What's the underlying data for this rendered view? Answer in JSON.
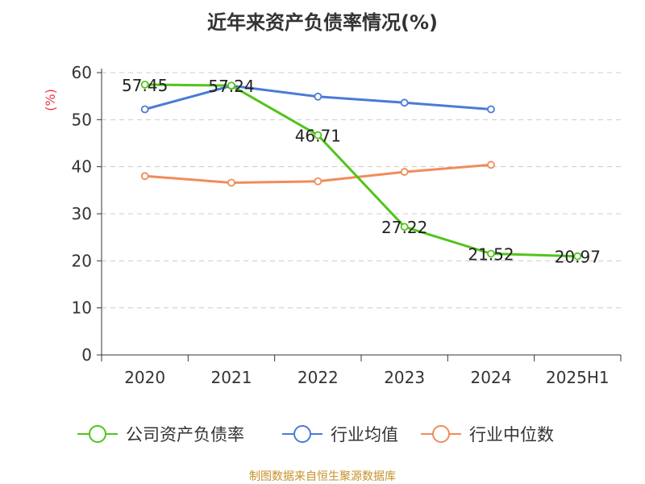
{
  "chart_data": {
    "type": "line",
    "title": "近年来资产负债率情况(%)",
    "ylabel": "(%)",
    "xlabel": "",
    "categories": [
      "2020",
      "2021",
      "2022",
      "2023",
      "2024",
      "2025H1"
    ],
    "ylim": [
      0,
      60
    ],
    "yticks": [
      "0",
      "10",
      "20",
      "30",
      "40",
      "50",
      "60"
    ],
    "grid": true,
    "legend_position": "bottom",
    "series": [
      {
        "name": "公司资产负债率",
        "color": "#52c41a",
        "values": [
          57.45,
          57.24,
          46.71,
          27.22,
          21.52,
          20.97
        ],
        "labels": [
          "57.45",
          "57.24",
          "46.71",
          "27.22",
          "21.52",
          "20.97"
        ]
      },
      {
        "name": "行业均值",
        "color": "#4a7bd6",
        "values": [
          52.2,
          57.2,
          54.9,
          53.6,
          52.2,
          null
        ]
      },
      {
        "name": "行业中位数",
        "color": "#f08c5a",
        "values": [
          38.0,
          36.6,
          36.9,
          38.9,
          40.4,
          null
        ]
      }
    ]
  },
  "source": "制图数据来自恒生聚源数据库"
}
